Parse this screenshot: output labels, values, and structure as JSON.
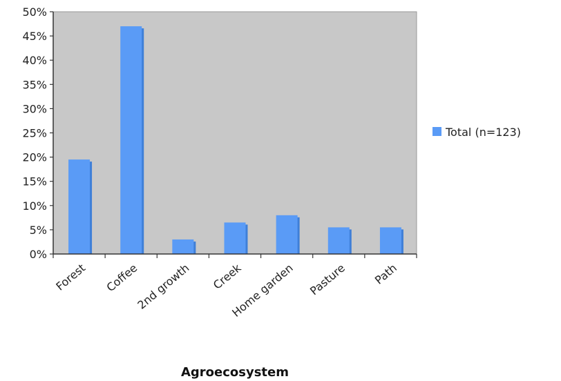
{
  "chart_data": {
    "type": "bar",
    "title": "",
    "xlabel": "Agroecosystem",
    "ylabel": "",
    "categories": [
      "Forest",
      "Coffee",
      "2nd growth",
      "Creek",
      "Home garden",
      "Pasture",
      "Path"
    ],
    "series": [
      {
        "name": "Total (n=123)",
        "values": [
          19.5,
          47,
          3,
          6.5,
          8,
          5.5,
          5.5
        ]
      }
    ],
    "ylim": [
      0,
      50
    ],
    "yticks": [
      0,
      5,
      10,
      15,
      20,
      25,
      30,
      35,
      40,
      45,
      50
    ],
    "ytick_labels": [
      "0%",
      "5%",
      "10%",
      "15%",
      "20%",
      "25%",
      "30%",
      "35%",
      "40%",
      "45%",
      "50%"
    ],
    "grid": false,
    "legend_position": "right",
    "colors": {
      "bar": "#5a9bf6",
      "bar_shade": "#3f7fd8",
      "plot_background": "#c8c8c8",
      "axis": "#333333"
    }
  }
}
